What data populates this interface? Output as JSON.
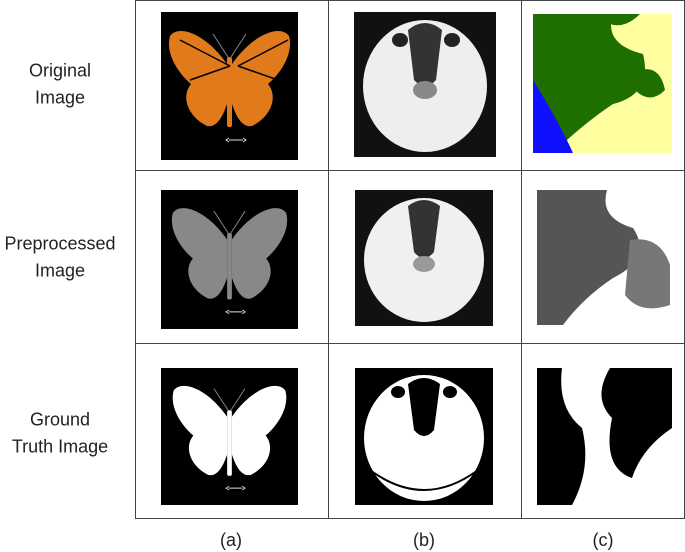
{
  "row_labels": [
    [
      "Original",
      "Image"
    ],
    [
      "Preprocessed",
      "Image"
    ],
    [
      "Ground",
      "Truth Image"
    ]
  ],
  "column_labels": [
    "(a)",
    "(b)",
    "(c)"
  ]
}
